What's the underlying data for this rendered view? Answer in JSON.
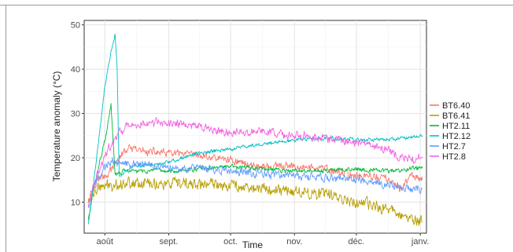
{
  "chart_data": {
    "type": "line",
    "xlabel": "Time",
    "ylabel": "Temperature anomaly (°C)",
    "x_ticks": [
      "août",
      "sept.",
      "oct.",
      "nov.",
      "déc.",
      "janv."
    ],
    "x_range": [
      "2017-07-22",
      "2018-01-04"
    ],
    "ylim": [
      3,
      51
    ],
    "y_ticks": [
      10,
      20,
      30,
      40,
      50
    ],
    "grid": true,
    "legend_position": "right",
    "series": [
      {
        "name": "BT6.40",
        "color": "#F8766D",
        "noise": 1.2,
        "points": [
          [
            "07-24",
            11
          ],
          [
            "07-28",
            15
          ],
          [
            "08-02",
            16
          ],
          [
            "08-08",
            20
          ],
          [
            "08-12",
            22
          ],
          [
            "08-20",
            21.5
          ],
          [
            "09-01",
            21
          ],
          [
            "09-15",
            20.5
          ],
          [
            "10-01",
            19.5
          ],
          [
            "10-15",
            18
          ],
          [
            "11-01",
            18
          ],
          [
            "11-15",
            17.5
          ],
          [
            "12-01",
            16
          ],
          [
            "12-15",
            15.5
          ],
          [
            "12-22",
            13
          ],
          [
            "12-28",
            16
          ],
          [
            "01-02",
            15
          ]
        ]
      },
      {
        "name": "BT6.41",
        "color": "#B79F00",
        "noise": 1.8,
        "points": [
          [
            "07-24",
            10
          ],
          [
            "07-28",
            13
          ],
          [
            "08-05",
            14
          ],
          [
            "08-15",
            14.5
          ],
          [
            "09-01",
            14
          ],
          [
            "10-01",
            14
          ],
          [
            "10-15",
            13
          ],
          [
            "11-01",
            12.5
          ],
          [
            "11-20",
            11.5
          ],
          [
            "12-01",
            10
          ],
          [
            "12-10",
            9
          ],
          [
            "12-20",
            8
          ],
          [
            "12-28",
            6
          ],
          [
            "01-02",
            5.5
          ]
        ]
      },
      {
        "name": "HT2.11",
        "color": "#00BA38",
        "noise": 0.7,
        "points": [
          [
            "07-24",
            6
          ],
          [
            "07-27",
            14
          ],
          [
            "07-30",
            20
          ],
          [
            "08-02",
            26
          ],
          [
            "08-04",
            32
          ],
          [
            "08-06",
            16
          ],
          [
            "08-10",
            17
          ],
          [
            "08-20",
            17
          ],
          [
            "09-01",
            17
          ],
          [
            "09-15",
            17.5
          ],
          [
            "10-01",
            18
          ],
          [
            "10-15",
            17.5
          ],
          [
            "11-01",
            17
          ],
          [
            "11-15",
            17
          ],
          [
            "12-01",
            17.5
          ],
          [
            "12-15",
            17
          ],
          [
            "12-28",
            17.5
          ],
          [
            "01-02",
            18
          ]
        ]
      },
      {
        "name": "HT2.12",
        "color": "#00BFC4",
        "noise": 0.6,
        "points": [
          [
            "07-24",
            5
          ],
          [
            "07-26",
            12
          ],
          [
            "07-29",
            24
          ],
          [
            "08-01",
            36
          ],
          [
            "08-04",
            44
          ],
          [
            "08-06",
            48
          ],
          [
            "08-07",
            40
          ],
          [
            "08-08",
            16
          ],
          [
            "08-15",
            18
          ],
          [
            "09-01",
            19
          ],
          [
            "09-15",
            21
          ],
          [
            "10-01",
            22
          ],
          [
            "10-15",
            23
          ],
          [
            "11-01",
            24
          ],
          [
            "11-15",
            24.5
          ],
          [
            "12-01",
            24
          ],
          [
            "12-15",
            24
          ],
          [
            "01-02",
            25
          ]
        ]
      },
      {
        "name": "HT2.7",
        "color": "#619CFF",
        "noise": 1.2,
        "points": [
          [
            "07-24",
            9
          ],
          [
            "07-28",
            15
          ],
          [
            "08-03",
            19
          ],
          [
            "08-10",
            19
          ],
          [
            "08-20",
            18.5
          ],
          [
            "09-01",
            18
          ],
          [
            "09-15",
            17.5
          ],
          [
            "10-01",
            17
          ],
          [
            "10-15",
            16.5
          ],
          [
            "11-01",
            16
          ],
          [
            "11-15",
            15.5
          ],
          [
            "12-01",
            15
          ],
          [
            "12-15",
            14
          ],
          [
            "12-28",
            13
          ],
          [
            "01-02",
            13
          ]
        ]
      },
      {
        "name": "HT2.8",
        "color": "#F564E3",
        "noise": 1.3,
        "points": [
          [
            "07-24",
            9
          ],
          [
            "07-28",
            16
          ],
          [
            "08-03",
            22
          ],
          [
            "08-08",
            26
          ],
          [
            "08-15",
            27.5
          ],
          [
            "09-01",
            28
          ],
          [
            "09-15",
            27
          ],
          [
            "10-01",
            25.5
          ],
          [
            "10-15",
            26
          ],
          [
            "11-01",
            25
          ],
          [
            "11-15",
            24.5
          ],
          [
            "12-01",
            23.5
          ],
          [
            "12-15",
            22
          ],
          [
            "12-22",
            20
          ],
          [
            "12-28",
            19.5
          ],
          [
            "01-02",
            20
          ]
        ]
      }
    ]
  }
}
